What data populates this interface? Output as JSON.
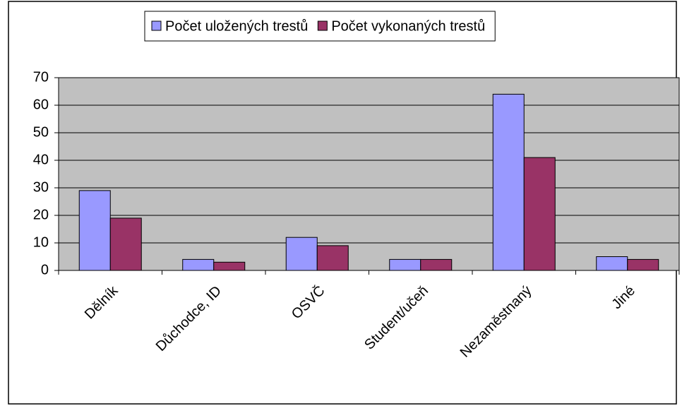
{
  "chart_data": {
    "type": "bar",
    "categories": [
      "Dělník",
      "Důchodce, ID",
      "OSVČ",
      "Student/učeň",
      "Nezaměstnaný",
      "Jiné"
    ],
    "series": [
      {
        "name": "Počet uložených trestů",
        "color": "#9999ff",
        "values": [
          29,
          4,
          12,
          4,
          64,
          5
        ]
      },
      {
        "name": "Počet vykonaných trestů",
        "color": "#993366",
        "values": [
          19,
          3,
          9,
          4,
          41,
          4
        ]
      }
    ],
    "ylim": [
      0,
      70
    ],
    "yticks": [
      0,
      10,
      20,
      30,
      40,
      50,
      60,
      70
    ],
    "grid": true,
    "legend": "top"
  }
}
